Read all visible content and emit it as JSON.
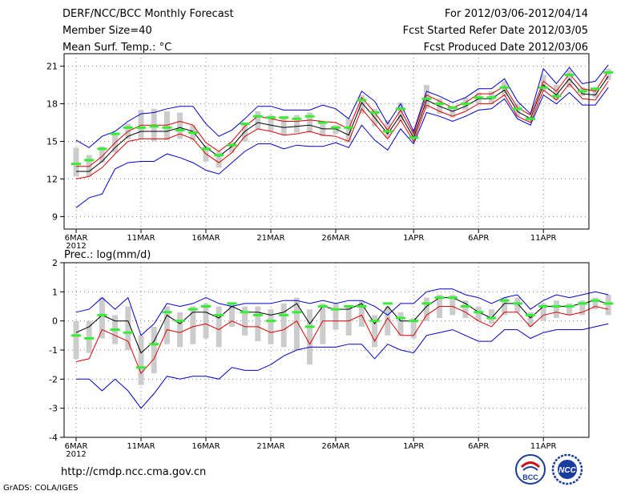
{
  "header": {
    "left_lines": [
      "DERF/NCC/BCC Monthly Forecast",
      "Member Size=40",
      "Mean Surf. Temp.: °C"
    ],
    "right_lines": [
      "For 2012/03/06-2012/04/14",
      "Fcst Started Refer Date 2012/03/05",
      "Fcst Produced Date 2012/03/06"
    ]
  },
  "footer": {
    "url": "http://cmdp.ncc.cma.gov.cn",
    "credit": "GrADS: COLA/IGES"
  },
  "logos": {
    "bcc": "BCC",
    "ncc": "NCC"
  },
  "colors": {
    "mean": "#000000",
    "inner": "#dd0000",
    "outer": "#0000cc",
    "obs": "#33ee33",
    "box": "#cccccc",
    "grid": "#808080"
  },
  "chart_data": [
    {
      "type": "line",
      "title": "Mean Surf. Temp.: °C",
      "x_tick_labels": [
        "6MAR",
        "11MAR",
        "16MAR",
        "21MAR",
        "26MAR",
        "1APR",
        "6APR",
        "11APR"
      ],
      "x_year_label": "2012",
      "ylim": [
        8,
        22
      ],
      "yticks": [
        9,
        12,
        15,
        18,
        21
      ],
      "series": [
        {
          "name": "outer_upper",
          "values": [
            15.1,
            14.5,
            15.4,
            15.8,
            16.6,
            17.2,
            17.3,
            17.6,
            17.8,
            17.8,
            16.4,
            15.4,
            15.9,
            16.8,
            17.8,
            17.8,
            17.5,
            17.5,
            17.5,
            17.9,
            17.6,
            16.8,
            19.0,
            18.2,
            16.4,
            18.0,
            15.8,
            19.0,
            18.6,
            18.1,
            18.5,
            19.2,
            19.2,
            20.0,
            18.2,
            17.2,
            20.8,
            19.6,
            20.9,
            19.6,
            19.8,
            21.1
          ]
        },
        {
          "name": "inner_upper",
          "values": [
            13.0,
            13.0,
            13.8,
            14.9,
            15.8,
            16.3,
            16.3,
            16.3,
            16.6,
            16.3,
            14.9,
            14.2,
            15.0,
            16.2,
            17.0,
            16.8,
            16.6,
            16.6,
            16.7,
            16.6,
            16.5,
            16.0,
            18.5,
            17.3,
            15.9,
            17.5,
            15.6,
            18.7,
            18.2,
            17.7,
            18.1,
            18.8,
            18.8,
            19.4,
            17.7,
            17.1,
            19.8,
            19.0,
            20.4,
            19.2,
            19.0,
            20.6
          ]
        },
        {
          "name": "mean",
          "values": [
            12.6,
            12.6,
            13.4,
            14.5,
            15.4,
            15.8,
            15.8,
            15.8,
            16.1,
            15.8,
            14.5,
            13.8,
            14.6,
            15.8,
            16.5,
            16.3,
            16.1,
            16.2,
            16.3,
            16.0,
            16.0,
            15.5,
            18.1,
            16.9,
            15.6,
            17.1,
            15.3,
            18.3,
            17.8,
            17.4,
            17.8,
            18.4,
            18.4,
            19.1,
            17.4,
            16.8,
            19.5,
            18.7,
            20.0,
            18.8,
            18.7,
            20.2
          ]
        },
        {
          "name": "inner_lower",
          "values": [
            12.0,
            12.2,
            12.9,
            14.0,
            15.0,
            15.2,
            15.2,
            15.2,
            15.6,
            15.2,
            14.0,
            13.3,
            14.1,
            15.4,
            16.0,
            15.8,
            15.5,
            15.6,
            15.8,
            15.5,
            15.4,
            15.0,
            17.6,
            16.4,
            15.2,
            16.7,
            15.0,
            17.9,
            17.4,
            17.0,
            17.4,
            18.0,
            18.0,
            18.7,
            17.0,
            16.5,
            19.1,
            18.3,
            19.6,
            18.4,
            18.3,
            19.8
          ]
        },
        {
          "name": "outer_lower",
          "values": [
            9.7,
            10.5,
            10.8,
            12.8,
            13.3,
            13.4,
            13.4,
            14.0,
            13.7,
            13.3,
            12.7,
            12.4,
            13.3,
            14.2,
            14.8,
            14.8,
            14.4,
            14.7,
            14.6,
            14.6,
            14.9,
            14.5,
            16.3,
            15.1,
            14.3,
            16.0,
            14.8,
            17.3,
            17.0,
            16.6,
            17.0,
            17.5,
            17.6,
            18.4,
            16.8,
            16.3,
            18.7,
            18.0,
            18.9,
            17.9,
            17.9,
            19.3
          ]
        }
      ],
      "box_low": [
        12.2,
        12.2,
        13.3,
        14.1,
        15.2,
        15.2,
        15.0,
        15.1,
        15.2,
        15.1,
        13.4,
        12.9,
        14.1,
        15.0,
        16.0,
        15.8,
        15.5,
        15.7,
        15.7,
        15.4,
        15.6,
        14.9,
        17.2,
        16.2,
        15.3,
        16.6,
        15.2,
        17.6,
        17.2,
        16.9,
        17.5,
        18.0,
        18.0,
        18.6,
        17.0,
        16.6,
        19.0,
        18.3,
        19.3,
        18.6,
        18.5,
        19.9
      ],
      "box_high": [
        14.5,
        13.9,
        14.6,
        15.5,
        16.4,
        17.5,
        17.6,
        17.4,
        17.3,
        16.3,
        14.7,
        14.2,
        14.9,
        16.3,
        17.4,
        17.1,
        17.0,
        17.1,
        17.3,
        16.5,
        16.3,
        16.8,
        18.7,
        17.6,
        16.7,
        18.1,
        16.0,
        19.5,
        18.4,
        17.8,
        18.5,
        18.9,
        19.0,
        19.8,
        18.0,
        17.0,
        20.3,
        19.5,
        20.7,
        19.3,
        19.2,
        20.8
      ],
      "observed": [
        13.2,
        13.5,
        14.4,
        15.6,
        16.1,
        16.1,
        16.2,
        16.1,
        15.9,
        15.7,
        14.4,
        13.9,
        14.7,
        16.4,
        17.0,
        16.9,
        16.9,
        16.8,
        17.0,
        16.5,
        16.1,
        16.1,
        18.3,
        17.3,
        15.8,
        17.6,
        15.3,
        18.4,
        18.0,
        17.7,
        18.0,
        18.5,
        18.5,
        19.3,
        17.6,
        16.8,
        19.3,
        18.6,
        20.3,
        19.0,
        19.2,
        20.5
      ]
    },
    {
      "type": "line",
      "title": "Prec.: log(mm/d)",
      "x_tick_labels": [
        "6MAR",
        "11MAR",
        "16MAR",
        "21MAR",
        "26MAR",
        "1APR",
        "6APR",
        "11APR"
      ],
      "x_year_label": "2012",
      "ylim": [
        -4,
        2
      ],
      "yticks": [
        -4,
        -3,
        -2,
        -1,
        0,
        1,
        2
      ],
      "series": [
        {
          "name": "outer_upper",
          "values": [
            0.3,
            0.4,
            0.8,
            0.4,
            0.8,
            -0.5,
            -0.1,
            0.6,
            0.5,
            0.6,
            0.8,
            0.6,
            0.5,
            0.6,
            0.6,
            0.6,
            0.7,
            0.7,
            0.6,
            0.7,
            0.6,
            0.7,
            0.7,
            0.5,
            0.2,
            0.6,
            0.6,
            1.0,
            1.1,
            1.1,
            0.9,
            0.8,
            0.6,
            0.8,
            0.9,
            0.4,
            0.7,
            0.9,
            0.8,
            0.9,
            1.0,
            0.9
          ]
        },
        {
          "name": "mean",
          "values": [
            -0.4,
            -0.2,
            0.2,
            0.0,
            0.0,
            -1.1,
            -0.7,
            0.2,
            -0.1,
            0.3,
            0.3,
            0.1,
            0.5,
            0.3,
            0.3,
            0.2,
            0.3,
            0.6,
            -0.1,
            0.5,
            0.4,
            0.4,
            0.6,
            -0.1,
            0.5,
            0.0,
            0.0,
            0.5,
            0.8,
            0.8,
            0.6,
            0.3,
            0.1,
            0.6,
            0.6,
            0.1,
            0.5,
            0.5,
            0.5,
            0.6,
            0.7,
            0.6
          ]
        },
        {
          "name": "inner_lower",
          "values": [
            -1.4,
            -1.3,
            -0.3,
            -0.5,
            -0.7,
            -1.8,
            -1.3,
            -0.3,
            -0.4,
            -0.2,
            -0.1,
            -0.3,
            0.0,
            -0.2,
            -0.2,
            -0.4,
            -0.3,
            0.0,
            -0.8,
            0.0,
            0.0,
            0.0,
            0.2,
            -0.7,
            0.1,
            -0.5,
            -0.5,
            0.2,
            0.5,
            0.5,
            0.3,
            0.0,
            -0.2,
            0.3,
            0.3,
            -0.2,
            0.2,
            0.3,
            0.2,
            0.3,
            0.5,
            0.4
          ]
        },
        {
          "name": "outer_lower",
          "values": [
            -2.0,
            -2.0,
            -2.4,
            -2.0,
            -2.4,
            -3.0,
            -2.5,
            -1.9,
            -2.0,
            -1.9,
            -1.9,
            -2.0,
            -1.6,
            -1.7,
            -1.7,
            -1.5,
            -1.2,
            -1.0,
            -0.9,
            -0.9,
            -0.9,
            -0.8,
            -0.8,
            -1.3,
            -0.8,
            -1.0,
            -1.1,
            -0.5,
            -0.4,
            -0.3,
            -0.5,
            -0.7,
            -0.7,
            -0.3,
            -0.3,
            -0.6,
            -0.4,
            -0.3,
            -0.3,
            -0.3,
            -0.2,
            -0.1
          ]
        }
      ],
      "box_low": [
        -1.3,
        -1.1,
        -0.6,
        -0.8,
        -1.0,
        -2.2,
        -1.8,
        -0.8,
        -0.9,
        -0.8,
        -0.6,
        -0.9,
        -0.2,
        -0.5,
        -0.7,
        -0.8,
        -0.9,
        -1.0,
        -1.5,
        -0.8,
        -0.3,
        -0.5,
        -0.2,
        -0.9,
        -0.5,
        -0.5,
        -0.6,
        0.0,
        0.1,
        0.2,
        0.1,
        0.0,
        -0.1,
        0.2,
        0.3,
        -0.2,
        0.0,
        0.1,
        0.2,
        0.2,
        0.4,
        0.2
      ],
      "box_high": [
        0.0,
        0.0,
        0.8,
        0.2,
        0.5,
        -0.5,
        -0.2,
        0.5,
        0.3,
        0.5,
        0.6,
        0.5,
        0.6,
        0.5,
        0.5,
        0.4,
        0.6,
        0.8,
        0.4,
        0.6,
        0.6,
        0.5,
        0.7,
        0.2,
        0.5,
        0.3,
        0.1,
        0.8,
        0.9,
        0.9,
        0.7,
        0.5,
        0.4,
        0.8,
        0.8,
        0.3,
        0.6,
        0.7,
        0.6,
        0.7,
        0.8,
        0.9
      ],
      "observed": [
        -0.5,
        -0.6,
        0.2,
        -0.3,
        -0.4,
        -1.6,
        -0.8,
        0.3,
        0.0,
        0.4,
        0.5,
        0.2,
        0.6,
        0.3,
        0.2,
        0.0,
        0.2,
        0.3,
        -0.2,
        0.5,
        0.4,
        0.5,
        0.5,
        0.0,
        0.6,
        0.1,
        0.0,
        0.6,
        0.8,
        0.8,
        0.5,
        0.3,
        0.1,
        0.7,
        0.6,
        0.2,
        0.5,
        0.5,
        0.5,
        0.6,
        0.7,
        0.6
      ]
    }
  ]
}
